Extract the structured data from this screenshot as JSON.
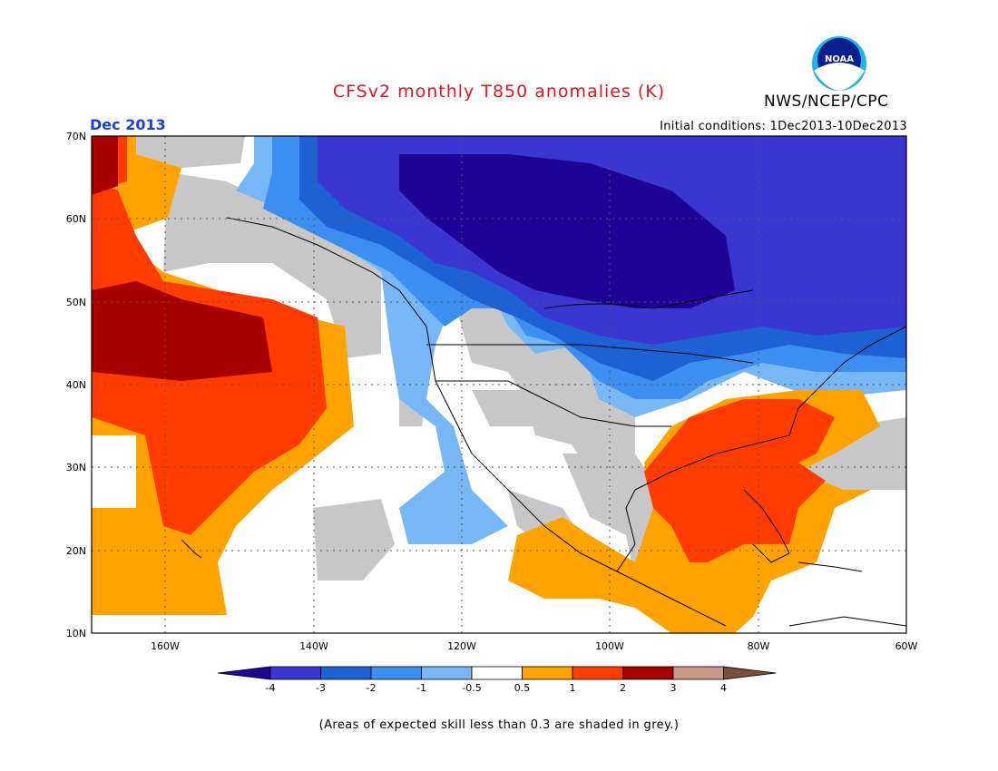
{
  "header": {
    "title": "CFSv2 monthly T850 anomalies (K)",
    "agency": "NWS/NCEP/CPC",
    "logo_text": "NOAA",
    "month": "Dec 2013",
    "initial_conditions": "Initial conditions: 1Dec2013-10Dec2013"
  },
  "map": {
    "projection": "lat-lon",
    "lon_range": [
      -170,
      -60
    ],
    "lat_range": [
      10,
      70
    ],
    "lat_ticks": [
      "10N",
      "20N",
      "30N",
      "40N",
      "50N",
      "60N",
      "70N"
    ],
    "lon_ticks": [
      "160W",
      "140W",
      "120W",
      "100W",
      "80W",
      "60W"
    ],
    "grid": "dotted"
  },
  "legend": {
    "labels": [
      "-4",
      "-3",
      "-2",
      "-1",
      "-0.5",
      "0.5",
      "1",
      "2",
      "3",
      "4"
    ],
    "colors": [
      "#1e0496",
      "#3b35d2",
      "#1e61d4",
      "#3c8ef0",
      "#78b7f5",
      "#ffffff",
      "#ffa300",
      "#ff3b00",
      "#a60000",
      "#c79a8a",
      "#7a4e3c"
    ]
  },
  "footnote": "(Areas of expected skill less than 0.3 are shaded in grey.)",
  "colors": {
    "title": "#e8141e",
    "month": "#1f3ee0",
    "skill_grey": "#c7c7c7"
  }
}
